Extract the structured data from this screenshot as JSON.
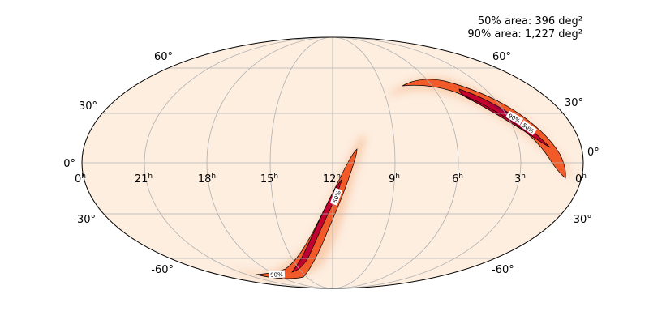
{
  "areas": {
    "line50": "50% area: 396 deg²",
    "line90": "90% area: 1,227 deg²"
  },
  "lat_labels": [
    "60°",
    "30°",
    "0°",
    "-30°",
    "-60°"
  ],
  "ra_labels": [
    {
      "num": "0",
      "sup": "h"
    },
    {
      "num": "21",
      "sup": "h"
    },
    {
      "num": "18",
      "sup": "h"
    },
    {
      "num": "15",
      "sup": "h"
    },
    {
      "num": "12",
      "sup": "h"
    },
    {
      "num": "9",
      "sup": "h"
    },
    {
      "num": "6",
      "sup": "h"
    },
    {
      "num": "3",
      "sup": "h"
    },
    {
      "num": "0",
      "sup": "h"
    }
  ],
  "contour_labels": [
    "90%",
    "50%",
    "50%",
    "90%"
  ],
  "colors": {
    "background": "#fdeee0",
    "grid": "#b0b0b0",
    "low": "#f9a36a",
    "mid": "#f25a2a",
    "high": "#d82b1c",
    "peak": "#b0004a",
    "contour": "#000000"
  }
}
